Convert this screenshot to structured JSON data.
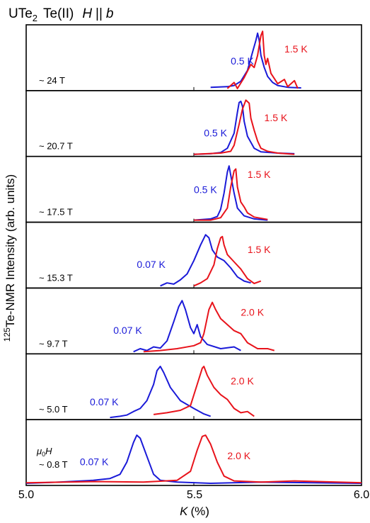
{
  "chart_data": {
    "type": "line",
    "title": {
      "compound": "UTe",
      "compound_sub": "2",
      "site": "Te(II)",
      "field_dir_H": "H",
      "field_dir_sep": "||",
      "field_dir_axis": "b"
    },
    "ylabel": {
      "sup": "125",
      "text": "Te-NMR Intensity (arb. units)"
    },
    "xlabel": {
      "italic": "K",
      "unit": "(%)"
    },
    "xlim": [
      5.0,
      6.0
    ],
    "xticks": [
      "5.0",
      "5.5",
      "6.0"
    ],
    "colors": {
      "high_T": "#e8131b",
      "low_T": "#1a1ad8"
    },
    "mu0H_label": {
      "mu": "μ",
      "sub": "0",
      "H": "H"
    },
    "panels": [
      {
        "field": "~ 24 T",
        "series": [
          {
            "name": "0.5 K",
            "color": "#1a1ad8",
            "points": [
              [
                5.55,
                0.02
              ],
              [
                5.6,
                0.03
              ],
              [
                5.62,
                0.05
              ],
              [
                5.64,
                0.12
              ],
              [
                5.66,
                0.3
              ],
              [
                5.675,
                0.6
              ],
              [
                5.685,
                0.8
              ],
              [
                5.69,
                0.92
              ],
              [
                5.695,
                0.8
              ],
              [
                5.7,
                0.55
              ],
              [
                5.71,
                0.35
              ],
              [
                5.72,
                0.2
              ],
              [
                5.735,
                0.1
              ],
              [
                5.75,
                0.05
              ],
              [
                5.78,
                0.02
              ],
              [
                5.82,
                0.01
              ]
            ]
          },
          {
            "name": "1.5 K",
            "color": "#e8131b",
            "points": [
              [
                5.6,
                0.0
              ],
              [
                5.62,
                0.1
              ],
              [
                5.63,
                0.0
              ],
              [
                5.65,
                0.18
              ],
              [
                5.67,
                0.4
              ],
              [
                5.68,
                0.35
              ],
              [
                5.69,
                0.55
              ],
              [
                5.7,
                0.88
              ],
              [
                5.705,
                0.95
              ],
              [
                5.71,
                0.55
              ],
              [
                5.715,
                0.4
              ],
              [
                5.72,
                0.5
              ],
              [
                5.73,
                0.25
              ],
              [
                5.75,
                0.08
              ],
              [
                5.77,
                0.15
              ],
              [
                5.78,
                0.03
              ],
              [
                5.8,
                0.13
              ],
              [
                5.81,
                0.0
              ]
            ]
          }
        ]
      },
      {
        "field": "~ 20.7 T",
        "series": [
          {
            "name": "0.5 K",
            "color": "#1a1ad8",
            "points": [
              [
                5.5,
                0.0
              ],
              [
                5.55,
                0.01
              ],
              [
                5.58,
                0.03
              ],
              [
                5.6,
                0.1
              ],
              [
                5.62,
                0.35
              ],
              [
                5.63,
                0.7
              ],
              [
                5.635,
                0.86
              ],
              [
                5.64,
                0.88
              ],
              [
                5.645,
                0.8
              ],
              [
                5.65,
                0.55
              ],
              [
                5.66,
                0.3
              ],
              [
                5.68,
                0.1
              ],
              [
                5.7,
                0.04
              ],
              [
                5.75,
                0.02
              ],
              [
                5.8,
                0.01
              ]
            ]
          },
          {
            "name": "1.5 K",
            "color": "#e8131b",
            "points": [
              [
                5.5,
                0.0
              ],
              [
                5.58,
                0.02
              ],
              [
                5.61,
                0.05
              ],
              [
                5.62,
                0.15
              ],
              [
                5.635,
                0.5
              ],
              [
                5.645,
                0.75
              ],
              [
                5.655,
                0.9
              ],
              [
                5.665,
                0.85
              ],
              [
                5.67,
                0.6
              ],
              [
                5.68,
                0.4
              ],
              [
                5.69,
                0.22
              ],
              [
                5.7,
                0.1
              ],
              [
                5.72,
                0.05
              ],
              [
                5.75,
                0.02
              ],
              [
                5.8,
                0.0
              ]
            ]
          }
        ]
      },
      {
        "field": "~ 17.5 T",
        "series": [
          {
            "name": "0.5 K",
            "color": "#1a1ad8",
            "points": [
              [
                5.5,
                0.0
              ],
              [
                5.55,
                0.02
              ],
              [
                5.57,
                0.06
              ],
              [
                5.58,
                0.18
              ],
              [
                5.59,
                0.45
              ],
              [
                5.6,
                0.8
              ],
              [
                5.605,
                0.9
              ],
              [
                5.61,
                0.75
              ],
              [
                5.62,
                0.45
              ],
              [
                5.63,
                0.2
              ],
              [
                5.65,
                0.07
              ],
              [
                5.68,
                0.02
              ],
              [
                5.72,
                0.0
              ]
            ]
          },
          {
            "name": "1.5 K",
            "color": "#e8131b",
            "points": [
              [
                5.5,
                0.0
              ],
              [
                5.55,
                0.0
              ],
              [
                5.58,
                0.04
              ],
              [
                5.6,
                0.2
              ],
              [
                5.61,
                0.55
              ],
              [
                5.62,
                0.82
              ],
              [
                5.625,
                0.85
              ],
              [
                5.63,
                0.55
              ],
              [
                5.64,
                0.3
              ],
              [
                5.65,
                0.22
              ],
              [
                5.66,
                0.12
              ],
              [
                5.68,
                0.05
              ],
              [
                5.72,
                0.01
              ]
            ]
          }
        ]
      },
      {
        "field": "~ 15.3 T",
        "series": [
          {
            "name": "0.07 K",
            "color": "#1a1ad8",
            "points": [
              [
                5.4,
                0.0
              ],
              [
                5.42,
                0.05
              ],
              [
                5.44,
                0.03
              ],
              [
                5.46,
                0.1
              ],
              [
                5.48,
                0.2
              ],
              [
                5.5,
                0.42
              ],
              [
                5.52,
                0.68
              ],
              [
                5.535,
                0.85
              ],
              [
                5.545,
                0.8
              ],
              [
                5.555,
                0.6
              ],
              [
                5.57,
                0.48
              ],
              [
                5.59,
                0.42
              ],
              [
                5.61,
                0.3
              ],
              [
                5.63,
                0.15
              ],
              [
                5.65,
                0.08
              ],
              [
                5.67,
                0.05
              ]
            ]
          },
          {
            "name": "1.5 K",
            "color": "#e8131b",
            "points": [
              [
                5.5,
                0.0
              ],
              [
                5.52,
                0.05
              ],
              [
                5.54,
                0.12
              ],
              [
                5.56,
                0.35
              ],
              [
                5.57,
                0.62
              ],
              [
                5.58,
                0.8
              ],
              [
                5.585,
                0.82
              ],
              [
                5.59,
                0.68
              ],
              [
                5.6,
                0.52
              ],
              [
                5.62,
                0.4
              ],
              [
                5.64,
                0.28
              ],
              [
                5.66,
                0.12
              ],
              [
                5.68,
                0.04
              ],
              [
                5.7,
                0.08
              ]
            ]
          }
        ]
      },
      {
        "field": "~ 9.7 T",
        "series": [
          {
            "name": "0.07 K",
            "color": "#1a1ad8",
            "points": [
              [
                5.32,
                0.0
              ],
              [
                5.34,
                0.05
              ],
              [
                5.36,
                0.02
              ],
              [
                5.38,
                0.08
              ],
              [
                5.4,
                0.06
              ],
              [
                5.42,
                0.18
              ],
              [
                5.44,
                0.5
              ],
              [
                5.455,
                0.75
              ],
              [
                5.465,
                0.85
              ],
              [
                5.475,
                0.7
              ],
              [
                5.49,
                0.4
              ],
              [
                5.5,
                0.3
              ],
              [
                5.51,
                0.45
              ],
              [
                5.52,
                0.25
              ],
              [
                5.54,
                0.12
              ],
              [
                5.58,
                0.05
              ],
              [
                5.62,
                0.08
              ],
              [
                5.64,
                0.02
              ]
            ]
          },
          {
            "name": "2.0 K",
            "color": "#e8131b",
            "points": [
              [
                5.35,
                0.0
              ],
              [
                5.4,
                0.02
              ],
              [
                5.45,
                0.05
              ],
              [
                5.5,
                0.1
              ],
              [
                5.52,
                0.15
              ],
              [
                5.53,
                0.3
              ],
              [
                5.545,
                0.7
              ],
              [
                5.555,
                0.82
              ],
              [
                5.565,
                0.7
              ],
              [
                5.58,
                0.55
              ],
              [
                5.6,
                0.45
              ],
              [
                5.62,
                0.35
              ],
              [
                5.64,
                0.3
              ],
              [
                5.66,
                0.15
              ],
              [
                5.69,
                0.05
              ],
              [
                5.72,
                0.05
              ],
              [
                5.74,
                0.02
              ]
            ]
          }
        ]
      },
      {
        "field": "~ 5.0 T",
        "series": [
          {
            "name": "0.07 K",
            "color": "#1a1ad8",
            "points": [
              [
                5.25,
                0.0
              ],
              [
                5.28,
                0.02
              ],
              [
                5.3,
                0.04
              ],
              [
                5.32,
                0.1
              ],
              [
                5.34,
                0.15
              ],
              [
                5.36,
                0.28
              ],
              [
                5.38,
                0.55
              ],
              [
                5.39,
                0.78
              ],
              [
                5.4,
                0.85
              ],
              [
                5.41,
                0.75
              ],
              [
                5.43,
                0.5
              ],
              [
                5.46,
                0.28
              ],
              [
                5.5,
                0.15
              ],
              [
                5.53,
                0.06
              ],
              [
                5.55,
                0.02
              ]
            ]
          },
          {
            "name": "2.0 K",
            "color": "#e8131b",
            "points": [
              [
                5.38,
                0.05
              ],
              [
                5.42,
                0.08
              ],
              [
                5.46,
                0.12
              ],
              [
                5.49,
                0.2
              ],
              [
                5.51,
                0.55
              ],
              [
                5.525,
                0.82
              ],
              [
                5.53,
                0.85
              ],
              [
                5.54,
                0.7
              ],
              [
                5.56,
                0.5
              ],
              [
                5.58,
                0.38
              ],
              [
                5.6,
                0.3
              ],
              [
                5.62,
                0.15
              ],
              [
                5.64,
                0.08
              ],
              [
                5.66,
                0.1
              ],
              [
                5.68,
                0.02
              ]
            ]
          }
        ]
      },
      {
        "field": "~ 0.8 T",
        "series": [
          {
            "name": "0.07 K",
            "color": "#1a1ad8",
            "points": [
              [
                5.0,
                0.0
              ],
              [
                5.1,
                0.02
              ],
              [
                5.2,
                0.05
              ],
              [
                5.25,
                0.08
              ],
              [
                5.28,
                0.15
              ],
              [
                5.3,
                0.35
              ],
              [
                5.32,
                0.68
              ],
              [
                5.33,
                0.8
              ],
              [
                5.34,
                0.75
              ],
              [
                5.36,
                0.45
              ],
              [
                5.38,
                0.15
              ],
              [
                5.4,
                0.05
              ],
              [
                5.45,
                0.02
              ],
              [
                5.55,
                0.0
              ],
              [
                5.7,
                0.02
              ],
              [
                6.0,
                0.0
              ]
            ]
          },
          {
            "name": "2.0 K",
            "color": "#e8131b",
            "points": [
              [
                5.0,
                0.01
              ],
              [
                5.2,
                0.03
              ],
              [
                5.35,
                0.02
              ],
              [
                5.45,
                0.05
              ],
              [
                5.49,
                0.2
              ],
              [
                5.51,
                0.55
              ],
              [
                5.525,
                0.78
              ],
              [
                5.535,
                0.8
              ],
              [
                5.55,
                0.65
              ],
              [
                5.57,
                0.35
              ],
              [
                5.59,
                0.12
              ],
              [
                5.62,
                0.04
              ],
              [
                5.7,
                0.02
              ],
              [
                5.8,
                0.04
              ],
              [
                6.0,
                0.01
              ]
            ]
          }
        ]
      }
    ]
  }
}
